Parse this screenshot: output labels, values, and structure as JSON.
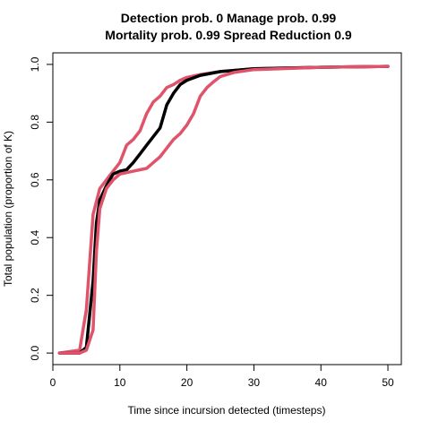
{
  "chart_data": {
    "type": "line",
    "title": "Detection prob. 0 Manage prob. 0.99",
    "subtitle": "Mortality prob. 0.99 Spread Reduction 0.9",
    "xlabel": "Time since incursion detected (timesteps)",
    "ylabel": "Total population (proportion of K)",
    "xlim": [
      0,
      52
    ],
    "ylim": [
      -0.04,
      1.04
    ],
    "xticks": [
      "0",
      "10",
      "20",
      "30",
      "40",
      "50"
    ],
    "yticks": [
      "0.0",
      "0.2",
      "0.4",
      "0.6",
      "0.8",
      "1.0"
    ],
    "x_tick_values": [
      0,
      10,
      20,
      30,
      40,
      50
    ],
    "y_tick_values": [
      0,
      0.2,
      0.4,
      0.6,
      0.8,
      1.0
    ],
    "grid": false,
    "legend": "none",
    "series": [
      {
        "role": "upper",
        "color": "#DF536B",
        "points": [
          [
            1,
            0
          ],
          [
            4,
            0.01
          ],
          [
            5,
            0.15
          ],
          [
            6,
            0.48
          ],
          [
            7,
            0.57
          ],
          [
            8,
            0.6
          ],
          [
            9,
            0.63
          ],
          [
            10,
            0.66
          ],
          [
            11,
            0.72
          ],
          [
            12,
            0.74
          ],
          [
            13,
            0.77
          ],
          [
            14,
            0.83
          ],
          [
            15,
            0.87
          ],
          [
            16,
            0.89
          ],
          [
            17,
            0.92
          ],
          [
            18,
            0.93
          ],
          [
            19,
            0.945
          ],
          [
            20,
            0.955
          ],
          [
            22,
            0.965
          ],
          [
            25,
            0.975
          ],
          [
            30,
            0.985
          ],
          [
            40,
            0.99
          ],
          [
            50,
            0.993
          ]
        ]
      },
      {
        "role": "median",
        "color": "#000000",
        "points": [
          [
            1,
            0
          ],
          [
            4,
            0
          ],
          [
            5,
            0.02
          ],
          [
            6,
            0.25
          ],
          [
            6.5,
            0.45
          ],
          [
            7,
            0.53
          ],
          [
            8,
            0.58
          ],
          [
            9,
            0.62
          ],
          [
            10,
            0.63
          ],
          [
            11,
            0.635
          ],
          [
            12,
            0.66
          ],
          [
            13,
            0.69
          ],
          [
            14,
            0.72
          ],
          [
            15,
            0.75
          ],
          [
            16,
            0.78
          ],
          [
            17,
            0.86
          ],
          [
            18,
            0.9
          ],
          [
            19,
            0.93
          ],
          [
            20,
            0.945
          ],
          [
            22,
            0.962
          ],
          [
            25,
            0.975
          ],
          [
            30,
            0.985
          ],
          [
            40,
            0.99
          ],
          [
            50,
            0.993
          ]
        ]
      },
      {
        "role": "lower",
        "color": "#DF536B",
        "points": [
          [
            1,
            0
          ],
          [
            4,
            0
          ],
          [
            5,
            0.01
          ],
          [
            6,
            0.08
          ],
          [
            6.5,
            0.35
          ],
          [
            7,
            0.5
          ],
          [
            8,
            0.57
          ],
          [
            9,
            0.6
          ],
          [
            10,
            0.62
          ],
          [
            11,
            0.625
          ],
          [
            12,
            0.63
          ],
          [
            13,
            0.635
          ],
          [
            14,
            0.64
          ],
          [
            15,
            0.66
          ],
          [
            16,
            0.68
          ],
          [
            17,
            0.71
          ],
          [
            18,
            0.74
          ],
          [
            19,
            0.76
          ],
          [
            20,
            0.79
          ],
          [
            21,
            0.83
          ],
          [
            22,
            0.89
          ],
          [
            23,
            0.92
          ],
          [
            24,
            0.94
          ],
          [
            25,
            0.958
          ],
          [
            27,
            0.972
          ],
          [
            30,
            0.982
          ],
          [
            40,
            0.99
          ],
          [
            50,
            0.993
          ]
        ]
      }
    ]
  }
}
